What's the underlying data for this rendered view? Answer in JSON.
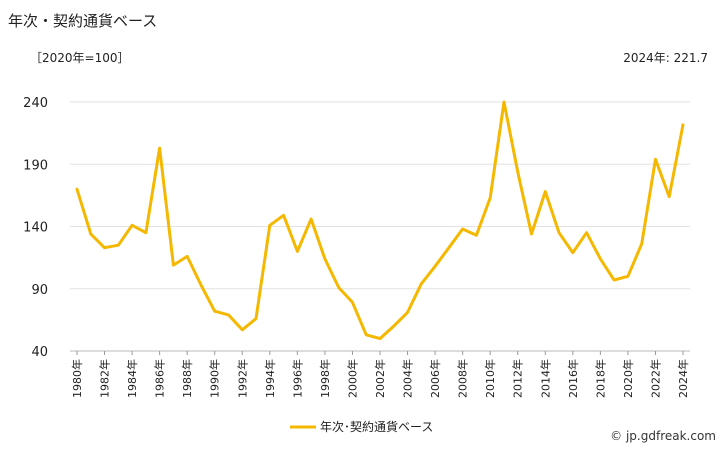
{
  "title": "年次・契約通貨ベース",
  "unit_label": "［2020年=100］",
  "latest_label": "2024年: 221.7",
  "credit": "© jp.gdfreak.com",
  "chart_data": {
    "type": "line",
    "x": [
      1980,
      1981,
      1982,
      1983,
      1984,
      1985,
      1986,
      1987,
      1988,
      1989,
      1990,
      1991,
      1992,
      1993,
      1994,
      1995,
      1996,
      1997,
      1998,
      1999,
      2000,
      2001,
      2002,
      2003,
      2004,
      2005,
      2006,
      2007,
      2008,
      2009,
      2010,
      2011,
      2012,
      2013,
      2014,
      2015,
      2016,
      2017,
      2018,
      2019,
      2020,
      2021,
      2022,
      2023,
      2024
    ],
    "x_tick_labels": [
      "1980年",
      "1982年",
      "1984年",
      "1986年",
      "1988年",
      "1990年",
      "1992年",
      "1994年",
      "1996年",
      "1998年",
      "2000年",
      "2002年",
      "2004年",
      "2006年",
      "2008年",
      "2010年",
      "2012年",
      "2014年",
      "2016年",
      "2018年",
      "2020年",
      "2022年",
      "2024年"
    ],
    "x_tick_values": [
      1980,
      1982,
      1984,
      1986,
      1988,
      1990,
      1992,
      1994,
      1996,
      1998,
      2000,
      2002,
      2004,
      2006,
      2008,
      2010,
      2012,
      2014,
      2016,
      2018,
      2020,
      2022,
      2024
    ],
    "series": [
      {
        "name": "年次･契約通貨ベース",
        "color": "#f5b800",
        "values": [
          170,
          134,
          123,
          125,
          141,
          135,
          203,
          109,
          116,
          93,
          72,
          69,
          57,
          66,
          141,
          149,
          120,
          146,
          114,
          91,
          79,
          53,
          50,
          60,
          71,
          94,
          108,
          123,
          138,
          133,
          163,
          240,
          184,
          134,
          168,
          135,
          119,
          135,
          114,
          97,
          100,
          126,
          194,
          164,
          221.7
        ]
      }
    ],
    "ylim": [
      40,
      240
    ],
    "y_ticks": [
      40,
      90,
      140,
      190,
      240
    ],
    "grid": true,
    "legend": "bottom-center"
  }
}
